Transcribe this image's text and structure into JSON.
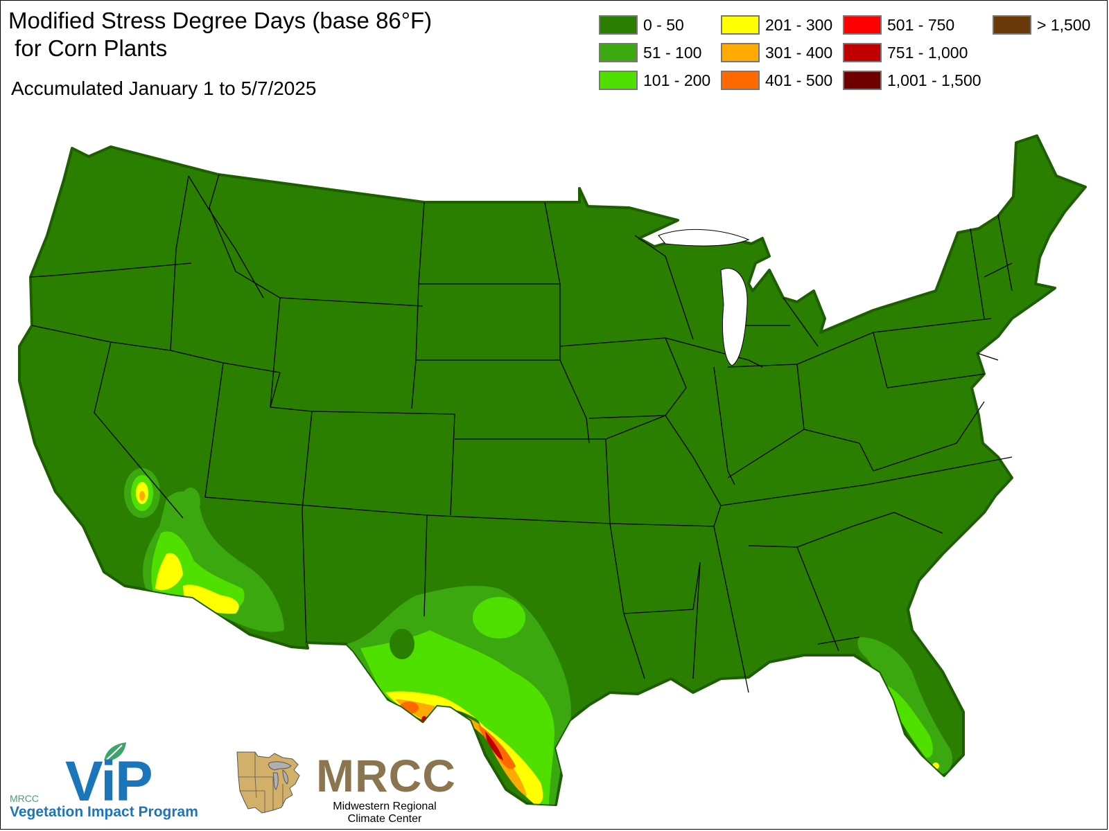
{
  "header": {
    "title_line1": "Modified Stress Degree Days (base 86°F)",
    "title_line2": " for Corn Plants",
    "subtitle": "Accumulated January 1 to 5/7/2025"
  },
  "legend": [
    {
      "label": "0 - 50",
      "color": "#2a7e00"
    },
    {
      "label": "51 - 100",
      "color": "#3aa80e"
    },
    {
      "label": "101 - 200",
      "color": "#50e000"
    },
    {
      "label": "201 - 300",
      "color": "#ffff00"
    },
    {
      "label": "301 - 400",
      "color": "#ffaa00"
    },
    {
      "label": "401 - 500",
      "color": "#ff6a00"
    },
    {
      "label": "501 - 750",
      "color": "#ff0000"
    },
    {
      "label": "751 - 1,000",
      "color": "#c00000"
    },
    {
      "label": "1,001 - 1,500",
      "color": "#700000"
    },
    {
      "label": "> 1,500",
      "color": "#6b3a0a"
    }
  ],
  "map": {
    "region": "Contiguous United States",
    "base_color": "#2a7e00",
    "border_color": "#000000"
  },
  "logos": {
    "vip_prefix": "MRCC",
    "vip_mark": "ViP",
    "vip_name": "Vegetation Impact Program",
    "mrcc_mark": "MRCC",
    "mrcc_line1": "Midwestern Regional",
    "mrcc_line2": "Climate Center"
  }
}
